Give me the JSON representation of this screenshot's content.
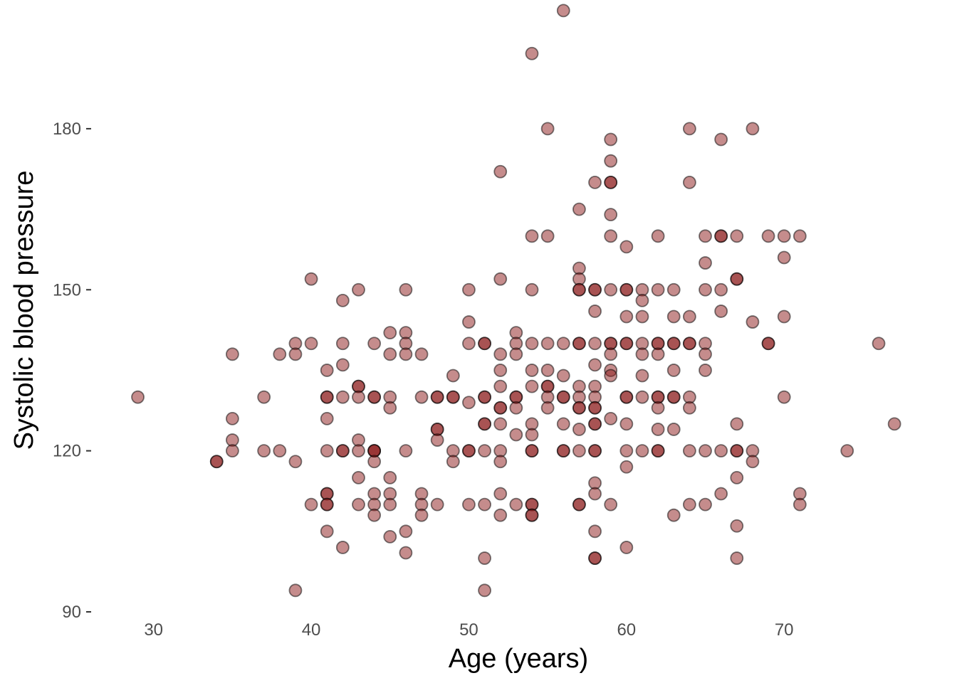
{
  "chart_data": {
    "type": "scatter",
    "title": "",
    "xlabel": "Age (years)",
    "ylabel": "Systolic blood pressure",
    "xlim": [
      26.4,
      78.8
    ],
    "ylim": [
      90,
      200
    ],
    "xticks": [
      30,
      40,
      50,
      60,
      70
    ],
    "yticks": [
      90,
      120,
      150,
      180
    ],
    "grid": false,
    "point_color": "#8b1a1a",
    "points": [
      [
        29,
        130
      ],
      [
        34,
        118
      ],
      [
        34,
        118
      ],
      [
        35,
        138
      ],
      [
        35,
        126
      ],
      [
        35,
        122
      ],
      [
        35,
        120
      ],
      [
        37,
        130
      ],
      [
        37,
        120
      ],
      [
        38,
        138
      ],
      [
        38,
        120
      ],
      [
        39,
        140
      ],
      [
        39,
        138
      ],
      [
        39,
        118
      ],
      [
        39,
        94
      ],
      [
        40,
        152
      ],
      [
        40,
        140
      ],
      [
        40,
        110
      ],
      [
        41,
        135
      ],
      [
        41,
        130
      ],
      [
        41,
        130
      ],
      [
        41,
        126
      ],
      [
        41,
        120
      ],
      [
        41,
        112
      ],
      [
        41,
        112
      ],
      [
        41,
        110
      ],
      [
        41,
        110
      ],
      [
        41,
        105
      ],
      [
        42,
        148
      ],
      [
        42,
        140
      ],
      [
        42,
        136
      ],
      [
        42,
        130
      ],
      [
        42,
        120
      ],
      [
        42,
        120
      ],
      [
        42,
        102
      ],
      [
        43,
        150
      ],
      [
        43,
        132
      ],
      [
        43,
        132
      ],
      [
        43,
        130
      ],
      [
        43,
        122
      ],
      [
        43,
        120
      ],
      [
        43,
        115
      ],
      [
        43,
        110
      ],
      [
        44,
        140
      ],
      [
        44,
        130
      ],
      [
        44,
        130
      ],
      [
        44,
        120
      ],
      [
        44,
        120
      ],
      [
        44,
        120
      ],
      [
        44,
        118
      ],
      [
        44,
        112
      ],
      [
        44,
        110
      ],
      [
        44,
        108
      ],
      [
        45,
        142
      ],
      [
        45,
        138
      ],
      [
        45,
        130
      ],
      [
        45,
        128
      ],
      [
        45,
        115
      ],
      [
        45,
        112
      ],
      [
        45,
        110
      ],
      [
        45,
        104
      ],
      [
        46,
        150
      ],
      [
        46,
        142
      ],
      [
        46,
        140
      ],
      [
        46,
        138
      ],
      [
        46,
        120
      ],
      [
        46,
        105
      ],
      [
        46,
        101
      ],
      [
        47,
        138
      ],
      [
        47,
        130
      ],
      [
        47,
        112
      ],
      [
        47,
        110
      ],
      [
        47,
        108
      ],
      [
        48,
        130
      ],
      [
        48,
        130
      ],
      [
        48,
        124
      ],
      [
        48,
        124
      ],
      [
        48,
        122
      ],
      [
        48,
        110
      ],
      [
        49,
        134
      ],
      [
        49,
        130
      ],
      [
        49,
        130
      ],
      [
        49,
        120
      ],
      [
        49,
        118
      ],
      [
        50,
        150
      ],
      [
        50,
        144
      ],
      [
        50,
        140
      ],
      [
        50,
        129
      ],
      [
        50,
        120
      ],
      [
        50,
        120
      ],
      [
        50,
        110
      ],
      [
        51,
        140
      ],
      [
        51,
        140
      ],
      [
        51,
        130
      ],
      [
        51,
        130
      ],
      [
        51,
        125
      ],
      [
        51,
        125
      ],
      [
        51,
        120
      ],
      [
        51,
        110
      ],
      [
        51,
        100
      ],
      [
        51,
        94
      ],
      [
        52,
        172
      ],
      [
        52,
        152
      ],
      [
        52,
        138
      ],
      [
        52,
        135
      ],
      [
        52,
        132
      ],
      [
        52,
        128
      ],
      [
        52,
        128
      ],
      [
        52,
        125
      ],
      [
        52,
        120
      ],
      [
        52,
        118
      ],
      [
        52,
        112
      ],
      [
        52,
        108
      ],
      [
        53,
        142
      ],
      [
        53,
        140
      ],
      [
        53,
        138
      ],
      [
        53,
        130
      ],
      [
        53,
        130
      ],
      [
        53,
        128
      ],
      [
        53,
        123
      ],
      [
        53,
        110
      ],
      [
        54,
        194
      ],
      [
        54,
        160
      ],
      [
        54,
        150
      ],
      [
        54,
        140
      ],
      [
        54,
        135
      ],
      [
        54,
        132
      ],
      [
        54,
        125
      ],
      [
        54,
        123
      ],
      [
        54,
        120
      ],
      [
        54,
        120
      ],
      [
        54,
        110
      ],
      [
        54,
        110
      ],
      [
        54,
        108
      ],
      [
        54,
        108
      ],
      [
        55,
        180
      ],
      [
        55,
        160
      ],
      [
        55,
        140
      ],
      [
        55,
        135
      ],
      [
        55,
        132
      ],
      [
        55,
        132
      ],
      [
        55,
        130
      ],
      [
        55,
        128
      ],
      [
        56,
        202
      ],
      [
        56,
        140
      ],
      [
        56,
        134
      ],
      [
        56,
        130
      ],
      [
        56,
        130
      ],
      [
        56,
        125
      ],
      [
        56,
        120
      ],
      [
        56,
        120
      ],
      [
        57,
        165
      ],
      [
        57,
        154
      ],
      [
        57,
        152
      ],
      [
        57,
        150
      ],
      [
        57,
        150
      ],
      [
        57,
        140
      ],
      [
        57,
        140
      ],
      [
        57,
        132
      ],
      [
        57,
        130
      ],
      [
        57,
        128
      ],
      [
        57,
        128
      ],
      [
        57,
        124
      ],
      [
        57,
        120
      ],
      [
        57,
        110
      ],
      [
        57,
        110
      ],
      [
        58,
        170
      ],
      [
        58,
        150
      ],
      [
        58,
        150
      ],
      [
        58,
        146
      ],
      [
        58,
        140
      ],
      [
        58,
        136
      ],
      [
        58,
        132
      ],
      [
        58,
        130
      ],
      [
        58,
        128
      ],
      [
        58,
        128
      ],
      [
        58,
        125
      ],
      [
        58,
        125
      ],
      [
        58,
        120
      ],
      [
        58,
        120
      ],
      [
        58,
        114
      ],
      [
        58,
        112
      ],
      [
        58,
        105
      ],
      [
        58,
        100
      ],
      [
        58,
        100
      ],
      [
        59,
        178
      ],
      [
        59,
        174
      ],
      [
        59,
        170
      ],
      [
        59,
        170
      ],
      [
        59,
        164
      ],
      [
        59,
        160
      ],
      [
        59,
        150
      ],
      [
        59,
        140
      ],
      [
        59,
        140
      ],
      [
        59,
        138
      ],
      [
        59,
        135
      ],
      [
        59,
        134
      ],
      [
        59,
        126
      ],
      [
        59,
        110
      ],
      [
        60,
        158
      ],
      [
        60,
        150
      ],
      [
        60,
        150
      ],
      [
        60,
        145
      ],
      [
        60,
        140
      ],
      [
        60,
        140
      ],
      [
        60,
        130
      ],
      [
        60,
        130
      ],
      [
        60,
        125
      ],
      [
        60,
        120
      ],
      [
        60,
        117
      ],
      [
        60,
        102
      ],
      [
        61,
        150
      ],
      [
        61,
        148
      ],
      [
        61,
        145
      ],
      [
        61,
        140
      ],
      [
        61,
        138
      ],
      [
        61,
        134
      ],
      [
        61,
        130
      ],
      [
        61,
        120
      ],
      [
        62,
        160
      ],
      [
        62,
        150
      ],
      [
        62,
        140
      ],
      [
        62,
        140
      ],
      [
        62,
        138
      ],
      [
        62,
        130
      ],
      [
        62,
        130
      ],
      [
        62,
        128
      ],
      [
        62,
        124
      ],
      [
        62,
        120
      ],
      [
        62,
        120
      ],
      [
        63,
        150
      ],
      [
        63,
        145
      ],
      [
        63,
        140
      ],
      [
        63,
        140
      ],
      [
        63,
        135
      ],
      [
        63,
        130
      ],
      [
        63,
        130
      ],
      [
        63,
        124
      ],
      [
        63,
        108
      ],
      [
        64,
        180
      ],
      [
        64,
        170
      ],
      [
        64,
        145
      ],
      [
        64,
        140
      ],
      [
        64,
        140
      ],
      [
        64,
        130
      ],
      [
        64,
        128
      ],
      [
        64,
        120
      ],
      [
        64,
        110
      ],
      [
        65,
        160
      ],
      [
        65,
        155
      ],
      [
        65,
        150
      ],
      [
        65,
        140
      ],
      [
        65,
        138
      ],
      [
        65,
        135
      ],
      [
        65,
        120
      ],
      [
        65,
        110
      ],
      [
        66,
        178
      ],
      [
        66,
        160
      ],
      [
        66,
        160
      ],
      [
        66,
        150
      ],
      [
        66,
        146
      ],
      [
        66,
        120
      ],
      [
        66,
        112
      ],
      [
        67,
        160
      ],
      [
        67,
        152
      ],
      [
        67,
        152
      ],
      [
        67,
        125
      ],
      [
        67,
        120
      ],
      [
        67,
        120
      ],
      [
        67,
        115
      ],
      [
        67,
        106
      ],
      [
        67,
        100
      ],
      [
        68,
        180
      ],
      [
        68,
        144
      ],
      [
        68,
        120
      ],
      [
        68,
        118
      ],
      [
        69,
        160
      ],
      [
        69,
        140
      ],
      [
        69,
        140
      ],
      [
        70,
        160
      ],
      [
        70,
        156
      ],
      [
        70,
        145
      ],
      [
        70,
        130
      ],
      [
        71,
        160
      ],
      [
        71,
        112
      ],
      [
        71,
        110
      ],
      [
        74,
        120
      ],
      [
        76,
        140
      ],
      [
        77,
        125
      ]
    ]
  }
}
